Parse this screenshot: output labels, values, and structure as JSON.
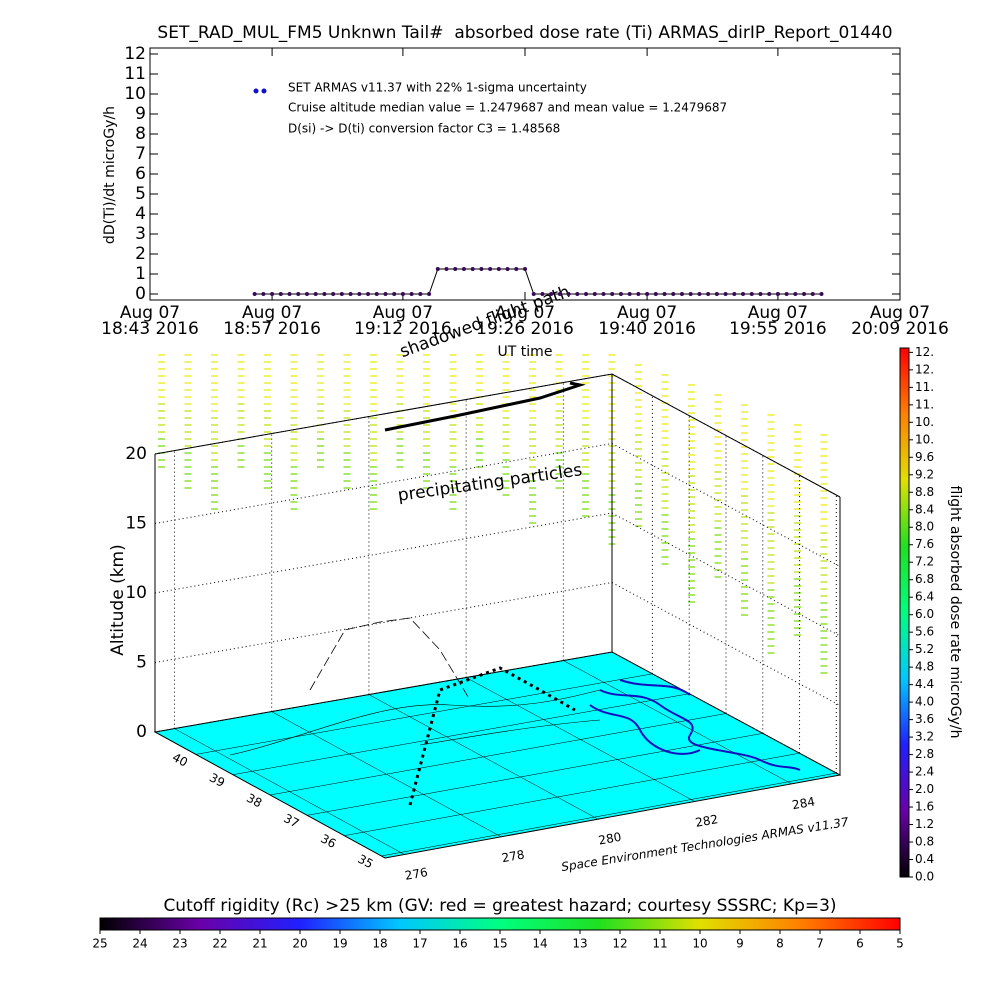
{
  "chart_data": [
    {
      "type": "line",
      "title": "SET_RAD_MUL_FM5 Unknwn Tail#  absorbed dose rate (Ti) ARMAS_dirIP_Report_01440",
      "xlabel": "UT time",
      "ylabel": "dD(Ti)/dt microGy/h",
      "xlim": [
        "18:43",
        "20:09"
      ],
      "xticks": [
        {
          "value": "18:43",
          "label": [
            "Aug 07",
            "18:43 2016"
          ]
        },
        {
          "value": "18:57",
          "label": [
            "Aug 07",
            "18:57 2016"
          ]
        },
        {
          "value": "19:12",
          "label": [
            "Aug 07",
            "19:12 2016"
          ]
        },
        {
          "value": "19:26",
          "label": [
            "Aug 07",
            "19:26 2016"
          ]
        },
        {
          "value": "19:40",
          "label": [
            "Aug 07",
            "19:40 2016"
          ]
        },
        {
          "value": "19:55",
          "label": [
            "Aug 07",
            "19:55 2016"
          ]
        },
        {
          "value": "20:09",
          "label": [
            "Aug 07",
            "20:09 2016"
          ]
        }
      ],
      "ylim": [
        -0.3,
        12.3
      ],
      "yticks": [
        0,
        1,
        2,
        3,
        4,
        5,
        6,
        7,
        8,
        9,
        10,
        11,
        12
      ],
      "annotations": [
        "Cruise altitude median value = 1.2479687 and mean value = 1.2479687",
        "D(si) -> D(ti) conversion factor C3 = 1.48568"
      ],
      "x": [
        "18:55",
        "18:56",
        "18:57",
        "18:58",
        "18:59",
        "19:00",
        "19:01",
        "19:02",
        "19:03",
        "19:04",
        "19:05",
        "19:06",
        "19:07",
        "19:08",
        "19:09",
        "19:10",
        "19:11",
        "19:12",
        "19:13",
        "19:14",
        "19:15",
        "19:16",
        "19:17",
        "19:18",
        "19:19",
        "19:20",
        "19:21",
        "19:22",
        "19:23",
        "19:24",
        "19:25",
        "19:26",
        "19:27",
        "19:28",
        "19:29",
        "19:30",
        "19:31",
        "19:32",
        "19:33",
        "19:34",
        "19:35",
        "19:36",
        "19:37",
        "19:38",
        "19:39",
        "19:40",
        "19:41",
        "19:42",
        "19:43",
        "19:44",
        "19:45",
        "19:46",
        "19:47",
        "19:48",
        "19:49",
        "19:50",
        "19:51",
        "19:52",
        "19:53",
        "19:54",
        "19:55",
        "19:56",
        "19:57",
        "19:58",
        "19:59",
        "20:00"
      ],
      "series": [
        {
          "name": "SET ARMAS v11.37 with 22% 1-sigma uncertainty",
          "color": "#1010d0",
          "line_color": "#000000",
          "marker_color": "#3a0a5a",
          "values": [
            0,
            0,
            0,
            0,
            0,
            0,
            0,
            0,
            0,
            0,
            0,
            0,
            0,
            0,
            0,
            0,
            0,
            0,
            0,
            0,
            0,
            1.2479687,
            1.2479687,
            1.2479687,
            1.2479687,
            1.2479687,
            1.2479687,
            1.2479687,
            1.2479687,
            1.2479687,
            1.2479687,
            1.2479687,
            0,
            0,
            0,
            0,
            0,
            0,
            0,
            0,
            0,
            0,
            0,
            0,
            0,
            0,
            0,
            0,
            0,
            0,
            0,
            0,
            0,
            0,
            0,
            0,
            0,
            0,
            0,
            0,
            0,
            0,
            0,
            0,
            0,
            0
          ]
        }
      ]
    },
    {
      "type": "surface3d",
      "zlabel": "Altitude (km)",
      "zlim": [
        0,
        20
      ],
      "zticks": [
        0,
        5,
        10,
        15,
        20
      ],
      "latlim": [
        34.9,
        41.1
      ],
      "latticks": [
        35,
        36,
        37,
        38,
        39,
        40
      ],
      "lonlim": [
        275.6,
        285
      ],
      "lonticks": [
        276,
        278,
        280,
        282,
        284
      ],
      "annotations": [
        "shadowed flight path",
        "precipitating particles",
        "Space Environment Technologies ARMAS v11.37"
      ],
      "floor_color": "#00ffff"
    },
    {
      "type": "colorbar",
      "orientation": "vertical",
      "label": "flight absorbed dose rate microGy/h",
      "lim": [
        0,
        12.1
      ],
      "ticks": [
        {
          "value": 0,
          "label": "0.0"
        },
        0.4,
        0.8,
        1.2,
        1.6,
        {
          "value": 2,
          "label": "2.0"
        },
        2.4,
        2.8,
        3.2,
        3.6,
        {
          "value": 4,
          "label": "4.0"
        },
        4.4,
        4.8,
        5.2,
        5.6,
        {
          "value": 6,
          "label": "6.0"
        },
        6.4,
        6.8,
        7.2,
        7.6,
        {
          "value": 8,
          "label": "8.0"
        },
        8.4,
        8.8,
        9.2,
        9.6,
        {
          "value": 10,
          "label": "10."
        },
        {
          "value": 10.4,
          "label": "10."
        },
        {
          "value": 10.8,
          "label": "11."
        },
        {
          "value": 11.2,
          "label": "11."
        },
        {
          "value": 11.6,
          "label": "12."
        },
        {
          "value": 12,
          "label": "12."
        }
      ],
      "colors": [
        "#000000",
        "#6a00a8",
        "#2020ff",
        "#00c8ff",
        "#00ff80",
        "#20e020",
        "#e0e000",
        "#ff8000",
        "#ff0000"
      ]
    },
    {
      "type": "colorbar",
      "orientation": "horizontal",
      "label": "Cutoff rigidity (Rc) >25 km (GV: red = greatest hazard; courtesy SSSRC; Kp=3)",
      "lim": [
        25,
        5
      ],
      "ticks": [
        25,
        24,
        23,
        22,
        21,
        20,
        19,
        18,
        17,
        16,
        15,
        14,
        13,
        12,
        11,
        10,
        9,
        8,
        7,
        6,
        5
      ],
      "colors": [
        "#000000",
        "#6a00a8",
        "#2020ff",
        "#00c8ff",
        "#00ff80",
        "#20e020",
        "#e0e000",
        "#ff8000",
        "#ff0000"
      ]
    }
  ]
}
